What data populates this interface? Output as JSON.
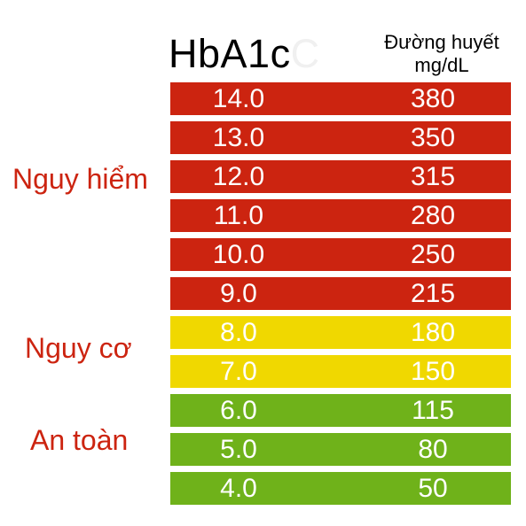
{
  "header": {
    "hba1c_label": "HbA1c",
    "glucose_label_line1": "Đường huyết",
    "glucose_label_line2": "mg/dL"
  },
  "colors": {
    "danger": "#cc2410",
    "risk": "#f0d800",
    "safe": "#6fb21a",
    "danger_text": "#cc2410"
  },
  "chart_data": {
    "type": "table",
    "columns": [
      "HbA1c",
      "Đường huyết mg/dL"
    ],
    "rows": [
      {
        "hba1c": "14.0",
        "glucose": "380",
        "zone": "danger"
      },
      {
        "hba1c": "13.0",
        "glucose": "350",
        "zone": "danger"
      },
      {
        "hba1c": "12.0",
        "glucose": "315",
        "zone": "danger"
      },
      {
        "hba1c": "11.0",
        "glucose": "280",
        "zone": "danger"
      },
      {
        "hba1c": "10.0",
        "glucose": "250",
        "zone": "danger"
      },
      {
        "hba1c": "9.0",
        "glucose": "215",
        "zone": "danger"
      },
      {
        "hba1c": "8.0",
        "glucose": "180",
        "zone": "risk"
      },
      {
        "hba1c": "7.0",
        "glucose": "150",
        "zone": "risk"
      },
      {
        "hba1c": "6.0",
        "glucose": "115",
        "zone": "safe"
      },
      {
        "hba1c": "5.0",
        "glucose": "80",
        "zone": "safe"
      },
      {
        "hba1c": "4.0",
        "glucose": "50",
        "zone": "safe"
      }
    ],
    "zones": [
      {
        "key": "danger",
        "label": "Nguy hiểm"
      },
      {
        "key": "risk",
        "label": "Nguy cơ"
      },
      {
        "key": "safe",
        "label": "An toàn"
      }
    ]
  }
}
